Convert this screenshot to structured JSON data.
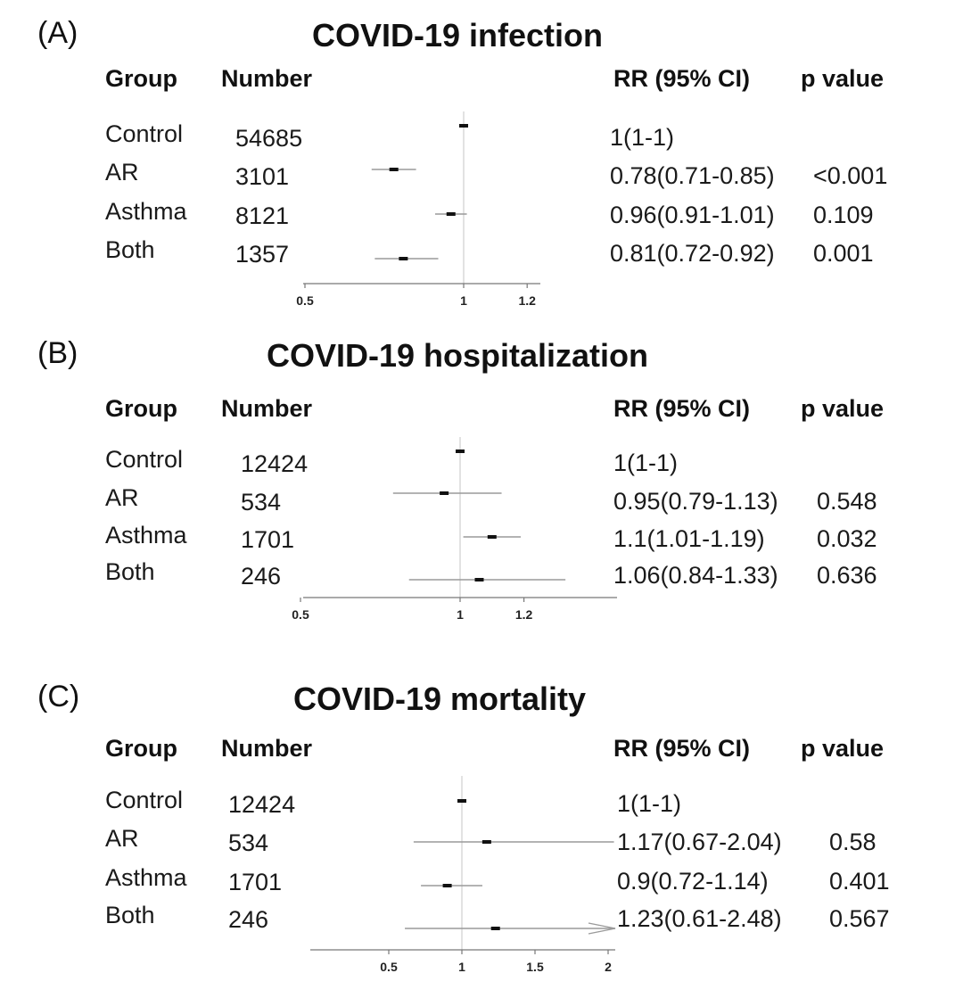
{
  "chart_data": [
    {
      "type": "forest",
      "panel": "(A)",
      "title": "COVID-19 infection",
      "columns": {
        "group": "Group",
        "number": "Number",
        "rr": "RR (95% CI)",
        "p": "p value"
      },
      "xticks": [
        0.5,
        1,
        1.2
      ],
      "xtick_labels": [
        "0.5",
        "1",
        "1.2"
      ],
      "xlim": [
        0.5,
        1.2
      ],
      "reference": 1,
      "rows": [
        {
          "group": "Control",
          "number": "54685",
          "rr": 1,
          "lo": 1,
          "hi": 1,
          "rr_text": "1(1-1)",
          "p": ""
        },
        {
          "group": "AR",
          "number": "3101",
          "rr": 0.78,
          "lo": 0.71,
          "hi": 0.85,
          "rr_text": "0.78(0.71-0.85)",
          "p": "<0.001"
        },
        {
          "group": "Asthma",
          "number": "8121",
          "rr": 0.96,
          "lo": 0.91,
          "hi": 1.01,
          "rr_text": "0.96(0.91-1.01)",
          "p": "0.109"
        },
        {
          "group": "Both",
          "number": "1357",
          "rr": 0.81,
          "lo": 0.72,
          "hi": 0.92,
          "rr_text": "0.81(0.72-0.92)",
          "p": "0.001"
        }
      ]
    },
    {
      "type": "forest",
      "panel": "(B)",
      "title": "COVID-19 hospitalization",
      "columns": {
        "group": "Group",
        "number": "Number",
        "rr": "RR (95% CI)",
        "p": "p value"
      },
      "xticks": [
        0.5,
        1,
        1.2
      ],
      "xtick_labels": [
        "0.5",
        "1",
        "1.2"
      ],
      "xlim": [
        0.5,
        1.45
      ],
      "reference": 1,
      "rows": [
        {
          "group": "Control",
          "number": "12424",
          "rr": 1,
          "lo": 1,
          "hi": 1,
          "rr_text": "1(1-1)",
          "p": ""
        },
        {
          "group": "AR",
          "number": "534",
          "rr": 0.95,
          "lo": 0.79,
          "hi": 1.13,
          "rr_text": "0.95(0.79-1.13)",
          "p": "0.548"
        },
        {
          "group": "Asthma",
          "number": "1701",
          "rr": 1.1,
          "lo": 1.01,
          "hi": 1.19,
          "rr_text": "1.1(1.01-1.19)",
          "p": "0.032"
        },
        {
          "group": "Both",
          "number": "246",
          "rr": 1.06,
          "lo": 0.84,
          "hi": 1.33,
          "rr_text": "1.06(0.84-1.33)",
          "p": "0.636"
        }
      ]
    },
    {
      "type": "forest",
      "panel": "(C)",
      "title": "COVID-19 mortality",
      "columns": {
        "group": "Group",
        "number": "Number",
        "rr": "RR (95% CI)",
        "p": "p value"
      },
      "xticks": [
        0.5,
        1,
        1.5,
        2
      ],
      "xtick_labels": [
        "0.5",
        "1",
        "1.5",
        "2"
      ],
      "xlim": [
        0,
        2
      ],
      "reference": 1,
      "rows": [
        {
          "group": "Control",
          "number": "12424",
          "rr": 1,
          "lo": 1,
          "hi": 1,
          "rr_text": "1(1-1)",
          "p": ""
        },
        {
          "group": "AR",
          "number": "534",
          "rr": 1.17,
          "lo": 0.67,
          "hi": 2.04,
          "rr_text": "1.17(0.67-2.04)",
          "p": "0.58"
        },
        {
          "group": "Asthma",
          "number": "1701",
          "rr": 0.9,
          "lo": 0.72,
          "hi": 1.14,
          "rr_text": "0.9(0.72-1.14)",
          "p": "0.401"
        },
        {
          "group": "Both",
          "number": "246",
          "rr": 1.23,
          "lo": 0.61,
          "hi": 2.48,
          "rr_text": "1.23(0.61-2.48)",
          "p": "0.567"
        }
      ]
    }
  ]
}
